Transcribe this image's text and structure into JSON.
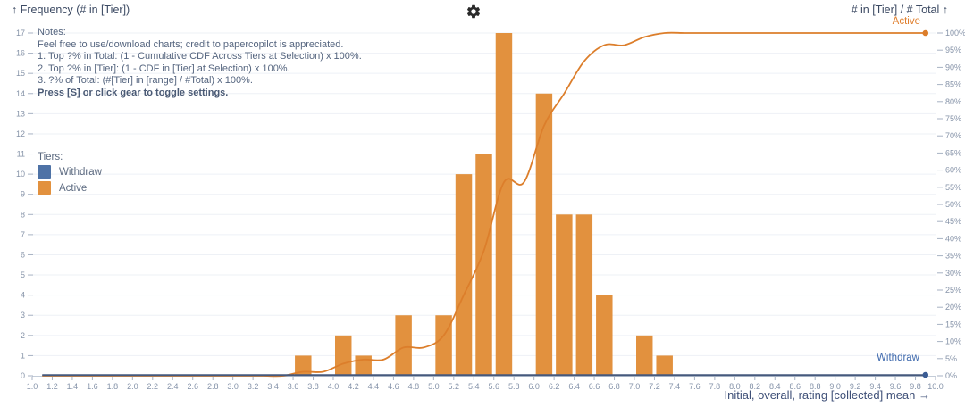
{
  "icons": {
    "settings": "gear-icon"
  },
  "notes": {
    "lines": [
      "Notes:",
      "Feel free to use/download charts; credit to papercopilot is appreciated.",
      "1. Top ?% in Total: (1 - Cumulative CDF Across Tiers at Selection) x 100%.",
      "2. Top ?% in [Tier]: (1 - CDF in [Tier] at Selection) x 100%.",
      "3. ?% of Total: (#[Tier] in [range] / #Total) x 100%."
    ],
    "bold_line": "Press [S] or click gear to toggle settings."
  },
  "legend": {
    "title": "Tiers:",
    "items": [
      {
        "label": "Withdraw",
        "color": "#4e72a6"
      },
      {
        "label": "Active",
        "color": "#e2913e"
      }
    ]
  },
  "chart_data": {
    "type": "bar",
    "subtype": "histogram_with_cdf",
    "xlabel": "Initial, overall, rating [collected] mean →",
    "x_range": [
      1.0,
      10.0
    ],
    "x_tick_step": 0.2,
    "x_tick_decimals": 1,
    "bin_width": 0.2,
    "grid": true,
    "left_axis": {
      "label": "↑ Frequency (# in [Tier])",
      "min": 0,
      "max": 17,
      "tick_step": 1
    },
    "right_axis": {
      "label": "# in [Tier] / # Total ↑",
      "min": 0,
      "max": 100,
      "tick_step": 5,
      "suffix": "%"
    },
    "cdf_points_range": [
      1.1,
      9.9
    ],
    "series": [
      {
        "name": "Withdraw",
        "color": "#4e72a6",
        "line_color": "#45597d",
        "dot_color": "#3b5c94",
        "total": 0,
        "bins": {}
      },
      {
        "name": "Active",
        "color": "#e2913e",
        "line_color": "#dc7e2b",
        "dot_color": "#dc7e2b",
        "total": 85,
        "bins": {
          "3.6": 1,
          "4.0": 2,
          "4.2": 1,
          "4.6": 3,
          "5.0": 3,
          "5.2": 10,
          "5.4": 11,
          "5.6": 17,
          "6.0": 14,
          "6.2": 8,
          "6.4": 8,
          "6.6": 4,
          "7.0": 2,
          "7.2": 1
        }
      }
    ]
  }
}
